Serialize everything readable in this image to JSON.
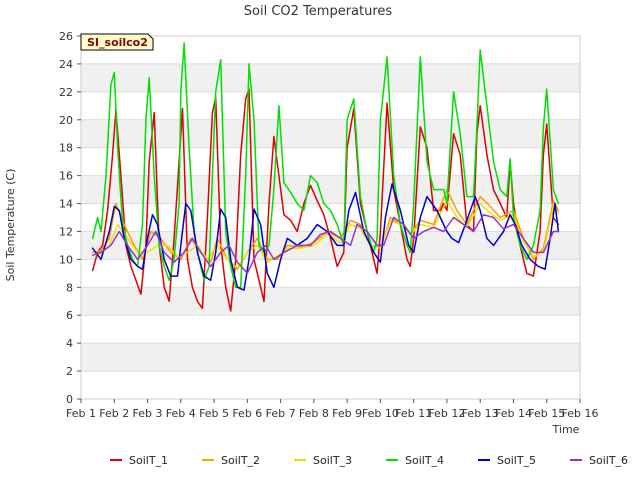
{
  "chart_data": {
    "type": "line",
    "title": "Soil CO2 Temperatures",
    "xlabel": "Time",
    "ylabel": "Soil Temperature (C)",
    "badge": "SI_soilco2",
    "ylim": [
      0,
      26
    ],
    "yticks": [
      0,
      2,
      4,
      6,
      8,
      10,
      12,
      14,
      16,
      18,
      20,
      22,
      24,
      26
    ],
    "xlim": [
      1,
      16
    ],
    "xticks": [
      {
        "value": 1,
        "label": "Feb 1"
      },
      {
        "value": 2,
        "label": "Feb 2"
      },
      {
        "value": 3,
        "label": "Feb 3"
      },
      {
        "value": 4,
        "label": "Feb 4"
      },
      {
        "value": 5,
        "label": "Feb 5"
      },
      {
        "value": 6,
        "label": "Feb 6"
      },
      {
        "value": 7,
        "label": "Feb 7"
      },
      {
        "value": 8,
        "label": "Feb 8"
      },
      {
        "value": 9,
        "label": "Feb 9"
      },
      {
        "value": 10,
        "label": "Feb 10"
      },
      {
        "value": 11,
        "label": "Feb 11"
      },
      {
        "value": 12,
        "label": "Feb 12"
      },
      {
        "value": 13,
        "label": "Feb 13"
      },
      {
        "value": 14,
        "label": "Feb 14"
      },
      {
        "value": 15,
        "label": "Feb 15"
      },
      {
        "value": 16,
        "label": "Feb 16"
      }
    ],
    "grid": "horizontal bands",
    "legend_position": "bottom",
    "series": [
      {
        "name": "SoilT_1",
        "color": "#e00000",
        "x": [
          1.35,
          1.5,
          1.65,
          1.8,
          1.95,
          2.05,
          2.2,
          2.35,
          2.5,
          2.65,
          2.8,
          2.95,
          3.05,
          3.2,
          3.35,
          3.5,
          3.65,
          3.8,
          3.95,
          4.05,
          4.2,
          4.35,
          4.5,
          4.65,
          4.8,
          4.95,
          5.05,
          5.2,
          5.35,
          5.5,
          5.65,
          5.8,
          5.95,
          6.05,
          6.2,
          6.35,
          6.5,
          6.65,
          6.8,
          6.95,
          7.1,
          7.3,
          7.5,
          7.7,
          7.9,
          8.1,
          8.3,
          8.5,
          8.7,
          8.9,
          9.0,
          9.2,
          9.4,
          9.6,
          9.8,
          9.9,
          10.0,
          10.2,
          10.4,
          10.6,
          10.8,
          10.9,
          11.0,
          11.2,
          11.4,
          11.6,
          11.8,
          11.9,
          12.0,
          12.2,
          12.4,
          12.6,
          12.8,
          12.9,
          13.0,
          13.2,
          13.4,
          13.6,
          13.8,
          13.9,
          14.0,
          14.2,
          14.4,
          14.6,
          14.8,
          14.9,
          15.0,
          15.2,
          15.35
        ],
        "y": [
          9.2,
          10.5,
          11.0,
          13.5,
          17.5,
          20.7,
          16.0,
          11.0,
          9.5,
          8.5,
          7.5,
          11.0,
          17.0,
          20.5,
          11.0,
          8.0,
          7.0,
          11.5,
          17.0,
          20.8,
          10.0,
          8.0,
          7.0,
          6.5,
          13.0,
          20.5,
          21.6,
          11.0,
          8.0,
          6.3,
          10.0,
          17.5,
          21.5,
          22.2,
          10.0,
          8.5,
          7.0,
          14.0,
          18.8,
          16.0,
          13.2,
          12.8,
          12.0,
          14.0,
          15.3,
          14.2,
          13.2,
          11.5,
          9.5,
          10.5,
          18.0,
          20.8,
          14.0,
          12.0,
          10.0,
          9.0,
          12.0,
          21.2,
          15.0,
          12.5,
          10.0,
          9.5,
          11.5,
          19.5,
          18.0,
          13.5,
          13.5,
          14.0,
          13.5,
          19.0,
          17.5,
          12.5,
          12.0,
          19.0,
          21.0,
          17.5,
          15.0,
          14.0,
          13.0,
          17.0,
          14.0,
          11.0,
          9.0,
          8.8,
          12.0,
          17.5,
          19.7,
          13.0,
          12.5
        ]
      },
      {
        "name": "SoilT_2",
        "color": "#ff9900",
        "x": [
          1.35,
          1.6,
          1.85,
          2.05,
          2.3,
          2.6,
          2.85,
          3.1,
          3.4,
          3.7,
          4.0,
          4.3,
          4.6,
          4.9,
          5.1,
          5.4,
          5.7,
          6.0,
          6.3,
          6.6,
          6.9,
          7.2,
          7.6,
          8.0,
          8.4,
          8.8,
          9.1,
          9.4,
          9.7,
          10.0,
          10.3,
          10.6,
          10.9,
          11.2,
          11.6,
          12.0,
          12.3,
          12.6,
          13.0,
          13.3,
          13.6,
          14.0,
          14.3,
          14.6,
          14.9,
          15.2,
          15.35
        ],
        "y": [
          10.5,
          10.6,
          11.5,
          14.0,
          12.5,
          11.0,
          10.0,
          12.0,
          11.5,
          10.5,
          10.0,
          11.5,
          10.5,
          9.8,
          11.5,
          10.0,
          9.3,
          10.5,
          11.5,
          10.0,
          10.0,
          11.0,
          10.9,
          11.2,
          12.0,
          11.5,
          12.8,
          12.5,
          11.0,
          10.8,
          13.0,
          12.5,
          11.8,
          12.8,
          12.5,
          15.0,
          13.5,
          12.5,
          14.5,
          13.8,
          13.0,
          13.5,
          11.5,
          10.0,
          10.8,
          14.2,
          13.5
        ]
      },
      {
        "name": "SoilT_3",
        "color": "#f0e000",
        "x": [
          1.35,
          1.6,
          1.85,
          2.1,
          2.4,
          2.7,
          3.0,
          3.3,
          3.6,
          3.9,
          4.2,
          4.5,
          4.8,
          5.1,
          5.4,
          5.7,
          6.0,
          6.3,
          6.6,
          6.9,
          7.2,
          7.6,
          8.0,
          8.4,
          8.8,
          9.1,
          9.4,
          9.7,
          10.0,
          10.3,
          10.6,
          10.9,
          11.2,
          11.6,
          12.0,
          12.3,
          12.6,
          13.0,
          13.3,
          13.6,
          14.0,
          14.3,
          14.6,
          14.9,
          15.2,
          15.35
        ],
        "y": [
          10.3,
          10.4,
          11.0,
          12.5,
          11.5,
          10.5,
          10.5,
          11.0,
          11.0,
          10.2,
          10.5,
          11.0,
          10.0,
          11.0,
          10.0,
          9.4,
          10.5,
          11.0,
          9.8,
          10.2,
          10.8,
          10.8,
          11.0,
          11.8,
          11.2,
          12.5,
          12.2,
          11.0,
          10.8,
          12.8,
          12.5,
          11.8,
          12.5,
          12.3,
          14.2,
          13.0,
          12.3,
          14.0,
          13.3,
          12.8,
          13.2,
          11.3,
          10.2,
          10.6,
          13.8,
          13.3
        ]
      },
      {
        "name": "SoilT_4",
        "color": "#00e000",
        "x": [
          1.35,
          1.5,
          1.6,
          1.75,
          1.9,
          2.0,
          2.1,
          2.25,
          2.4,
          2.55,
          2.7,
          2.85,
          2.95,
          3.05,
          3.2,
          3.35,
          3.5,
          3.65,
          3.8,
          3.95,
          4.0,
          4.1,
          4.25,
          4.4,
          4.55,
          4.7,
          4.85,
          4.95,
          5.05,
          5.2,
          5.35,
          5.5,
          5.65,
          5.8,
          5.95,
          6.05,
          6.2,
          6.35,
          6.5,
          6.65,
          6.8,
          6.95,
          7.1,
          7.3,
          7.5,
          7.7,
          7.9,
          8.1,
          8.3,
          8.5,
          8.7,
          8.9,
          9.0,
          9.2,
          9.4,
          9.6,
          9.8,
          9.9,
          10.0,
          10.2,
          10.4,
          10.6,
          10.8,
          10.9,
          11.0,
          11.2,
          11.4,
          11.6,
          11.8,
          11.9,
          12.0,
          12.2,
          12.4,
          12.6,
          12.8,
          12.9,
          13.0,
          13.2,
          13.4,
          13.6,
          13.8,
          13.9,
          14.0,
          14.2,
          14.4,
          14.6,
          14.8,
          14.9,
          15.0,
          15.2,
          15.35
        ],
        "y": [
          11.5,
          13.0,
          12.0,
          16.0,
          22.5,
          23.4,
          18.0,
          12.5,
          11.0,
          10.0,
          9.5,
          12.5,
          20.0,
          23.0,
          16.0,
          11.0,
          9.5,
          8.5,
          10.0,
          14.0,
          22.0,
          25.5,
          18.0,
          12.0,
          10.0,
          8.5,
          9.5,
          16.0,
          22.0,
          24.3,
          12.0,
          9.5,
          8.0,
          8.0,
          16.0,
          24.0,
          20.0,
          11.0,
          10.5,
          11.0,
          15.0,
          21.0,
          15.5,
          14.8,
          14.0,
          13.5,
          16.0,
          15.5,
          14.0,
          13.5,
          12.5,
          11.0,
          20.0,
          21.5,
          14.5,
          12.0,
          10.5,
          11.5,
          20.0,
          24.5,
          16.0,
          12.5,
          11.0,
          10.5,
          14.0,
          24.5,
          17.0,
          15.0,
          15.0,
          15.0,
          14.0,
          22.0,
          19.0,
          14.5,
          14.5,
          19.5,
          25.0,
          21.0,
          17.0,
          15.0,
          14.5,
          17.2,
          13.0,
          11.0,
          10.0,
          11.0,
          13.5,
          19.5,
          22.2,
          15.0,
          14.0
        ]
      },
      {
        "name": "SoilT_5",
        "color": "#0000cc",
        "x": [
          1.35,
          1.6,
          1.85,
          2.0,
          2.15,
          2.3,
          2.5,
          2.7,
          2.85,
          3.0,
          3.15,
          3.3,
          3.5,
          3.7,
          3.9,
          4.0,
          4.15,
          4.3,
          4.5,
          4.7,
          4.9,
          5.05,
          5.2,
          5.35,
          5.5,
          5.7,
          5.9,
          6.05,
          6.2,
          6.4,
          6.6,
          6.8,
          7.0,
          7.2,
          7.5,
          7.8,
          8.1,
          8.4,
          8.7,
          8.9,
          9.05,
          9.25,
          9.5,
          9.8,
          10.0,
          10.15,
          10.35,
          10.6,
          10.85,
          11.0,
          11.2,
          11.4,
          11.7,
          12.0,
          12.15,
          12.35,
          12.6,
          12.85,
          13.0,
          13.2,
          13.4,
          13.7,
          13.9,
          14.05,
          14.25,
          14.5,
          14.75,
          14.95,
          15.1,
          15.25,
          15.35
        ],
        "y": [
          10.8,
          10.0,
          12.0,
          13.8,
          13.5,
          11.5,
          10.0,
          9.5,
          9.3,
          11.5,
          13.2,
          12.5,
          10.0,
          8.8,
          8.8,
          11.0,
          14.0,
          13.5,
          10.5,
          8.8,
          8.5,
          10.5,
          13.6,
          13.0,
          10.0,
          8.0,
          7.8,
          10.0,
          13.6,
          12.5,
          9.0,
          8.0,
          10.0,
          11.5,
          11.0,
          11.5,
          12.5,
          12.0,
          11.0,
          11.0,
          13.5,
          14.8,
          12.0,
          10.5,
          9.8,
          13.0,
          15.4,
          13.5,
          11.0,
          10.5,
          13.0,
          14.5,
          13.5,
          12.0,
          11.5,
          11.2,
          12.8,
          14.5,
          13.5,
          11.5,
          11.0,
          12.0,
          13.2,
          12.5,
          11.0,
          10.0,
          9.5,
          9.3,
          11.5,
          14.0,
          12.0
        ]
      },
      {
        "name": "SoilT_6",
        "color": "#9933cc",
        "x": [
          1.35,
          1.6,
          1.9,
          2.15,
          2.4,
          2.7,
          3.0,
          3.25,
          3.5,
          3.8,
          4.1,
          4.35,
          4.6,
          4.9,
          5.2,
          5.45,
          5.7,
          6.0,
          6.3,
          6.55,
          6.8,
          7.1,
          7.5,
          7.9,
          8.2,
          8.5,
          8.8,
          9.1,
          9.3,
          9.6,
          9.9,
          10.1,
          10.4,
          10.7,
          11.0,
          11.3,
          11.6,
          11.9,
          12.2,
          12.5,
          12.8,
          13.1,
          13.4,
          13.7,
          14.0,
          14.3,
          14.6,
          14.9,
          15.2,
          15.35
        ],
        "y": [
          10.3,
          10.5,
          11.0,
          12.0,
          11.0,
          10.0,
          11.0,
          12.0,
          10.5,
          9.8,
          10.5,
          11.5,
          10.5,
          9.5,
          10.5,
          11.0,
          9.8,
          9.0,
          10.5,
          11.0,
          10.0,
          10.5,
          11.0,
          11.0,
          11.8,
          12.0,
          11.5,
          11.0,
          12.5,
          12.0,
          11.0,
          11.0,
          13.0,
          12.5,
          11.5,
          12.0,
          12.3,
          12.0,
          13.0,
          12.5,
          12.0,
          13.2,
          13.0,
          12.2,
          12.5,
          11.5,
          10.5,
          10.5,
          12.0,
          12.0
        ]
      }
    ]
  }
}
